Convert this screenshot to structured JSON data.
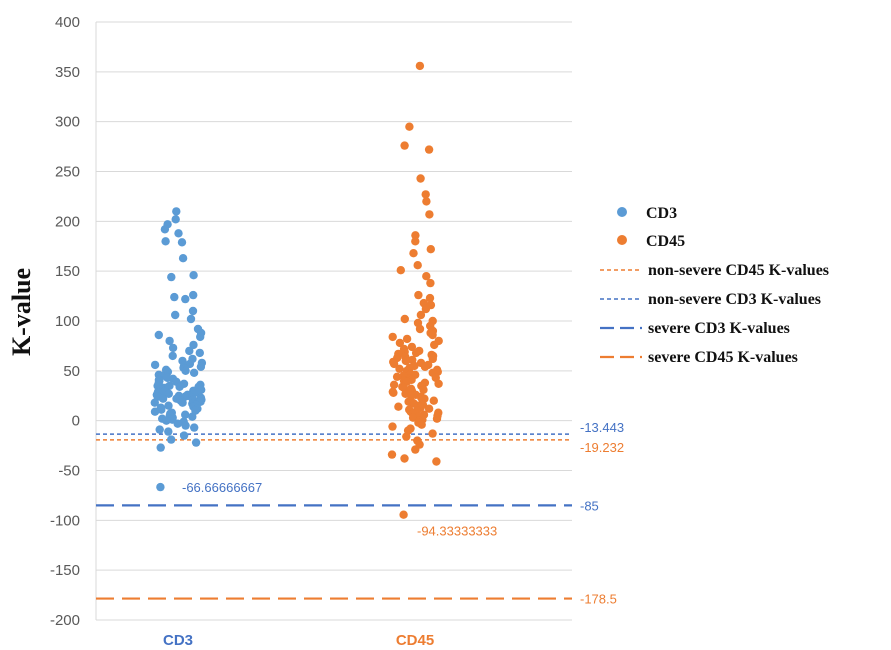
{
  "chart_data": {
    "type": "scatter",
    "ylabel": "K-value",
    "ylim": [
      -200,
      400
    ],
    "yticks": [
      -200,
      -150,
      -100,
      -50,
      0,
      50,
      100,
      150,
      200,
      250,
      300,
      350,
      400
    ],
    "grid": "horizontal",
    "legend_position": "right",
    "categories": [
      "CD3",
      "CD45"
    ],
    "series": [
      {
        "name": "CD3",
        "category": "CD3",
        "color": "#5b9bd5",
        "values": [
          210,
          202,
          197,
          192,
          188,
          180,
          179,
          163,
          146,
          144,
          126,
          124,
          122,
          110,
          106,
          102,
          92,
          88,
          86,
          84,
          80,
          76,
          73,
          70,
          68,
          65,
          62,
          60,
          58,
          57,
          56,
          55,
          54,
          53,
          52,
          51,
          50,
          49,
          48,
          47,
          46,
          45,
          44,
          43,
          42,
          41,
          40,
          39,
          38,
          37,
          36,
          35,
          35,
          34,
          34,
          33,
          33,
          32,
          32,
          31,
          31,
          30,
          30,
          29,
          29,
          28,
          28,
          27,
          27,
          26,
          26,
          25,
          25,
          24,
          24,
          23,
          23,
          22,
          22,
          21,
          21,
          20,
          20,
          19,
          19,
          18,
          18,
          17,
          16,
          15,
          14,
          13,
          12,
          11,
          10,
          9,
          8,
          7,
          6,
          5,
          4,
          3,
          2,
          1,
          0,
          -1,
          -3,
          -5,
          -7,
          -9,
          -11,
          -15,
          -19,
          -22,
          -27,
          -66.66666667
        ]
      },
      {
        "name": "CD45",
        "category": "CD45",
        "color": "#ed7d31",
        "values": [
          356,
          295,
          276,
          272,
          243,
          227,
          220,
          207,
          186,
          180,
          172,
          168,
          156,
          151,
          145,
          138,
          126,
          123,
          118,
          116,
          112,
          106,
          102,
          100,
          98,
          95,
          92,
          90,
          88,
          86,
          84,
          82,
          80,
          78,
          76,
          74,
          72,
          70,
          69,
          68,
          67,
          66,
          65,
          64,
          63,
          62,
          61,
          60,
          59,
          58,
          57,
          56,
          55,
          54,
          53,
          52,
          51,
          50,
          49,
          48,
          47,
          46,
          45,
          44,
          43,
          42,
          41,
          40,
          39,
          38,
          37,
          36,
          35,
          34,
          33,
          32,
          31,
          30,
          29,
          28,
          27,
          26,
          25,
          24,
          23,
          22,
          21,
          20,
          19,
          18,
          17,
          16,
          15,
          14,
          13,
          12,
          11,
          10,
          9,
          8,
          7,
          6,
          5,
          4,
          3,
          2,
          1,
          0,
          -2,
          -4,
          -6,
          -8,
          -10,
          -13,
          -16,
          -20,
          -24,
          -29,
          -34,
          -38,
          -41,
          -94.33333333
        ]
      }
    ],
    "point_annotations": [
      {
        "series": "CD3",
        "value": -66.66666667,
        "label": "-66.66666667",
        "color": "#4472c4"
      },
      {
        "series": "CD45",
        "value": -94.33333333,
        "label": "-94.33333333",
        "color": "#ed7d31"
      }
    ],
    "reference_lines": [
      {
        "name": "non-severe CD45 K-values",
        "value": -19.232,
        "label": "-19.232",
        "color": "#ed7d31",
        "style": "dotted"
      },
      {
        "name": "non-severe CD3 K-values",
        "value": -13.443,
        "label": "-13.443",
        "color": "#4472c4",
        "style": "dotted"
      },
      {
        "name": "severe CD3 K-values",
        "value": -85,
        "label": "-85",
        "color": "#4472c4",
        "style": "dashed"
      },
      {
        "name": "severe CD45 K-values",
        "value": -178.5,
        "label": "-178.5",
        "color": "#ed7d31",
        "style": "dashed"
      }
    ],
    "tick_colors": {
      "CD3": "#4472c4",
      "CD45": "#ed7d31"
    }
  }
}
